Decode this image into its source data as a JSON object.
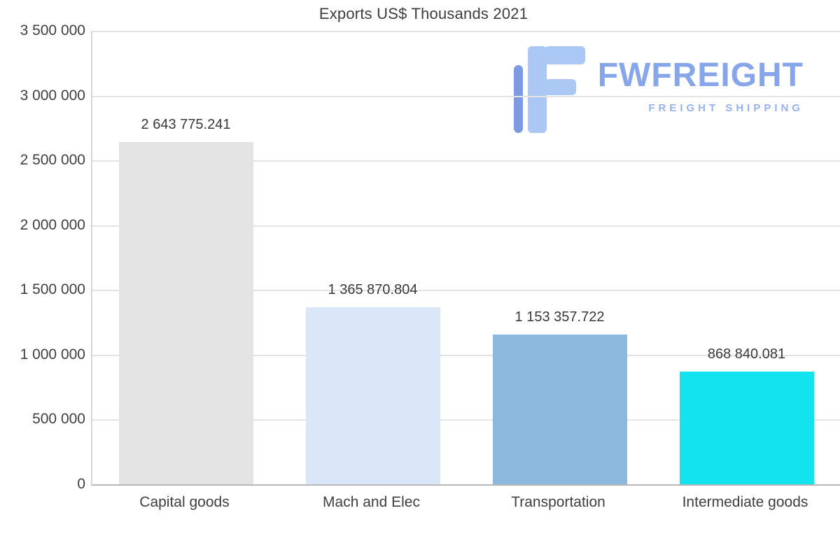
{
  "title": "Exports US$ Thousands 2021",
  "logo": {
    "name": "FWFREIGHT",
    "tagline": "FREIGHT SHIPPING",
    "color": "#87a6e9",
    "mark_light": "#abc7f3",
    "mark_dark": "#7d9be0"
  },
  "chart_data": {
    "type": "bar",
    "title": "Exports US$ Thousands 2021",
    "categories": [
      "Capital goods",
      "Mach and Elec",
      "Transportation",
      "Intermediate goods"
    ],
    "values": [
      2643775.241,
      1365870.804,
      1153357.722,
      868840.081
    ],
    "value_labels": [
      "2 643 775.241",
      "1 365 870.804",
      "1 153 357.722",
      "868 840.081"
    ],
    "bar_colors": [
      "#e4e4e4",
      "#d9e7f8",
      "#8db8de",
      "#12e3ee"
    ],
    "xlabel": "",
    "ylabel": "",
    "ylim": [
      0,
      3500000
    ],
    "yticks": [
      0,
      500000,
      1000000,
      1500000,
      2000000,
      2500000,
      3000000,
      3500000
    ],
    "ytick_labels": [
      "0",
      "500 000",
      "1 000 000",
      "1 500 000",
      "2 000 000",
      "2 500 000",
      "3 000 000",
      "3 500 000"
    ],
    "grid": true,
    "legend": null
  }
}
